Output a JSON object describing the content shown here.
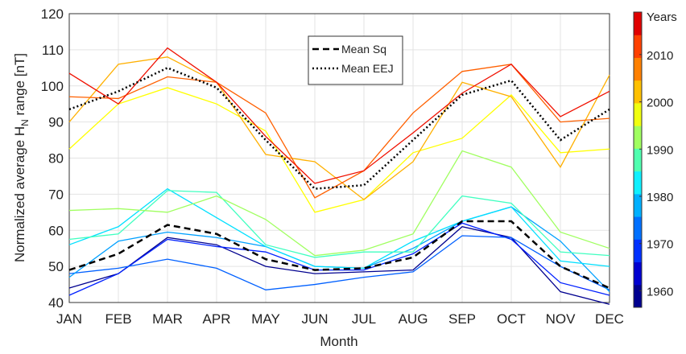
{
  "chart_data": {
    "type": "line",
    "xlabel": "Month",
    "ylabel": "Normalized average H",
    "ylabel_sub": "N",
    "ylabel_suffix": " range [nT]",
    "categories": [
      "JAN",
      "FEB",
      "MAR",
      "APR",
      "MAY",
      "JUN",
      "JUL",
      "AUG",
      "SEP",
      "OCT",
      "NOV",
      "DEC"
    ],
    "ylim": [
      40,
      120
    ],
    "yticks": [
      40,
      50,
      60,
      70,
      80,
      90,
      100,
      110,
      120
    ],
    "grid": true,
    "series": [
      {
        "color": "#00008f",
        "values": [
          44,
          48,
          58,
          56,
          50,
          48,
          48.5,
          49,
          61,
          58,
          43,
          39.5
        ]
      },
      {
        "color": "#0020ff",
        "values": [
          42,
          48,
          57.5,
          55.5,
          54,
          49,
          49,
          53.5,
          62,
          57.5,
          45.5,
          42
        ]
      },
      {
        "color": "#0060ff",
        "values": [
          48,
          49.5,
          52,
          49.5,
          43.5,
          45,
          47,
          48.5,
          58.5,
          58,
          50,
          43.5
        ]
      },
      {
        "color": "#00a0ff",
        "values": [
          47,
          57,
          59.5,
          58,
          55.5,
          50,
          49.5,
          55,
          62.5,
          66.5,
          57,
          43
        ]
      },
      {
        "color": "#00e0ff",
        "values": [
          56,
          61,
          71.5,
          63.5,
          55.5,
          50,
          49.5,
          57,
          62.5,
          66.5,
          51.5,
          50
        ]
      },
      {
        "color": "#40ffc0",
        "values": [
          57.5,
          59,
          71,
          70.5,
          56,
          52.5,
          54,
          54,
          69.5,
          67.5,
          54,
          53
        ]
      },
      {
        "color": "#a0ff60",
        "values": [
          65.5,
          66,
          65,
          69.5,
          63,
          53,
          54.5,
          59,
          82,
          77.5,
          59.5,
          55
        ]
      },
      {
        "color": "#ffff00",
        "values": [
          82.5,
          95,
          99.5,
          95,
          87.5,
          65,
          68.5,
          81.5,
          85.5,
          97.5,
          81.5,
          82.5
        ]
      },
      {
        "color": "#ffb000",
        "values": [
          90,
          106,
          108,
          101,
          81,
          79,
          68.5,
          79,
          101,
          97,
          77.5,
          103
        ]
      },
      {
        "color": "#ff6000",
        "values": [
          97,
          96.5,
          102.5,
          101,
          92.5,
          69,
          76.5,
          92.5,
          104,
          106,
          90,
          91
        ]
      },
      {
        "color": "#f01000",
        "values": [
          103.5,
          95,
          110.5,
          101,
          86,
          73,
          76.5,
          87,
          98,
          106,
          91.5,
          98.5
        ]
      },
      {
        "name": "Mean Sq",
        "color": "#000000",
        "dash": "8,5",
        "values": [
          49,
          53.5,
          61.5,
          59,
          52,
          49,
          49.5,
          52.5,
          62.5,
          62.5,
          50,
          44
        ]
      },
      {
        "name": "Mean EEJ",
        "color": "#000000",
        "dash": "2,3",
        "values": [
          93.5,
          98.5,
          105,
          99.5,
          85,
          71.5,
          72.5,
          85,
          97.5,
          101.5,
          85,
          93.5
        ]
      }
    ],
    "colorbar": {
      "label": "Years",
      "lim": [
        1956.5,
        2019
      ],
      "ticks": [
        1960,
        1970,
        1980,
        1990,
        2000,
        2010
      ],
      "colors": [
        "#00008f",
        "#0000d0",
        "#0030ff",
        "#0070ff",
        "#00b0ff",
        "#10f0ff",
        "#50ffb0",
        "#a0ff60",
        "#f0ff10",
        "#ffc000",
        "#ff8000",
        "#ff4000",
        "#e00000"
      ]
    }
  }
}
